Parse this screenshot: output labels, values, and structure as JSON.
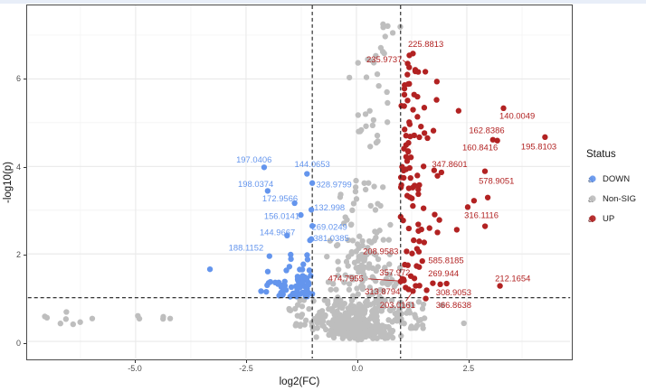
{
  "window": {
    "top_strip_color": "#E8EEF8"
  },
  "chart_data": {
    "type": "scatter",
    "subtype": "volcano-plot",
    "title": "",
    "xlabel": "log2(FC)",
    "ylabel": "-log10(p)",
    "xlim": [
      -7.44,
      4.84
    ],
    "ylim": [
      -0.39,
      7.68
    ],
    "x_tick_values": [
      -5.0,
      -2.5,
      0.0,
      2.5
    ],
    "x_tick_labels": [
      "-5.0",
      "-2.5",
      "0.0",
      "2.5"
    ],
    "y_tick_values": [
      0,
      2,
      4,
      6
    ],
    "y_tick_labels": [
      "0",
      "2",
      "4",
      "6"
    ],
    "x_minor_ticks": [
      -6.25,
      -3.75,
      -1.25,
      1.25,
      3.75
    ],
    "y_minor_ticks": [
      1,
      3,
      5,
      7
    ],
    "grid": {
      "on": true,
      "major_color": "#E9E9E9",
      "minor_color": "#F4F4F4"
    },
    "panel_border_color": "#4a4a4a",
    "thresholds": {
      "vlines": [
        -1,
        1
      ],
      "hline": 1,
      "line_style": "dashed",
      "color": "#1a1a1a"
    },
    "point_radius": 3.2,
    "seed": 42,
    "groups": {
      "DOWN": "#6495ED",
      "Non-SIG": "#BEBEBE",
      "UP": "#B22222"
    },
    "legend": {
      "title": "Status",
      "position": "right",
      "key_letter": "a",
      "entries": [
        {
          "label": "DOWN",
          "color": "#6495ED"
        },
        {
          "label": "Non-SIG",
          "color": "#BEBEBE"
        },
        {
          "label": "UP",
          "color": "#B22222"
        }
      ]
    },
    "labeled_points": [
      {
        "label": "197.0406",
        "group": "DOWN",
        "x": -2.09,
        "y": 3.98,
        "lx": -2.32,
        "ly": 4.16
      },
      {
        "label": "144.0653",
        "group": "DOWN",
        "x": -1.12,
        "y": 3.83,
        "lx": -1.0,
        "ly": 4.06
      },
      {
        "label": "198.0374",
        "group": "DOWN",
        "x": -2.01,
        "y": 3.44,
        "lx": -2.28,
        "ly": 3.6
      },
      {
        "label": "328.9799",
        "group": "DOWN",
        "x": -1.0,
        "y": 3.62,
        "lx": -0.51,
        "ly": 3.59
      },
      {
        "label": "172.9566",
        "group": "DOWN",
        "x": -1.4,
        "y": 3.16,
        "lx": -1.73,
        "ly": 3.27
      },
      {
        "label": "132.998",
        "group": "DOWN",
        "x": -1.02,
        "y": 3.01,
        "lx": -0.61,
        "ly": 3.07
      },
      {
        "label": "156.0141",
        "group": "DOWN",
        "x": -1.26,
        "y": 2.89,
        "lx": -1.69,
        "ly": 2.87
      },
      {
        "label": "269.0249",
        "group": "DOWN",
        "x": -1.0,
        "y": 2.64,
        "lx": -0.61,
        "ly": 2.62
      },
      {
        "label": "144.9667",
        "group": "DOWN",
        "x": -1.57,
        "y": 2.42,
        "lx": -1.79,
        "ly": 2.5
      },
      {
        "label": "381.0385",
        "group": "DOWN",
        "x": -1.02,
        "y": 2.34,
        "lx": -0.57,
        "ly": 2.36
      },
      {
        "label": "188.1152",
        "group": "DOWN",
        "x": -1.97,
        "y": 1.95,
        "lx": -2.5,
        "ly": 2.15
      },
      {
        "label": "225.8813",
        "group": "UP",
        "x": 1.28,
        "y": 6.58,
        "lx": 1.57,
        "ly": 6.8
      },
      {
        "label": "235.9737",
        "group": "UP",
        "x": 1.16,
        "y": 6.35,
        "lx": 0.63,
        "ly": 6.45,
        "leader": [
          1.05,
          6.43,
          1.13,
          6.37
        ]
      },
      {
        "label": "140.0049",
        "group": "UP",
        "x": 3.33,
        "y": 5.33,
        "lx": 3.64,
        "ly": 5.16
      },
      {
        "label": "162.8386",
        "group": "UP",
        "x": 3.09,
        "y": 4.61,
        "lx": 2.95,
        "ly": 4.83
      },
      {
        "label": "160.8416",
        "group": "UP",
        "x": 3.19,
        "y": 4.59,
        "lx": 2.8,
        "ly": 4.44
      },
      {
        "label": "195.8103",
        "group": "UP",
        "x": 4.27,
        "y": 4.67,
        "lx": 4.13,
        "ly": 4.46
      },
      {
        "label": "347.8601",
        "group": "UP",
        "x": 1.52,
        "y": 4.0,
        "lx": 2.11,
        "ly": 4.06
      },
      {
        "label": "578.9051",
        "group": "UP",
        "x": 2.91,
        "y": 3.89,
        "lx": 3.17,
        "ly": 3.68
      },
      {
        "label": "316.1116",
        "group": "UP",
        "x": 2.52,
        "y": 3.07,
        "lx": 2.83,
        "ly": 2.89
      },
      {
        "label": "208.9583",
        "group": "UP",
        "x": 1.26,
        "y": 2.01,
        "lx": 0.55,
        "ly": 2.07
      },
      {
        "label": "585.8185",
        "group": "UP",
        "x": 1.42,
        "y": 1.7,
        "lx": 2.03,
        "ly": 1.86
      },
      {
        "label": "357.972",
        "group": "UP",
        "x": 1.04,
        "y": 1.43,
        "lx": 0.87,
        "ly": 1.58,
        "leader": [
          0.95,
          1.52,
          1.02,
          1.45
        ]
      },
      {
        "label": "474.7955",
        "group": "UP",
        "x": 1.0,
        "y": 1.37,
        "lx": -0.24,
        "ly": 1.45,
        "leader": [
          0.27,
          1.43,
          0.98,
          1.38
        ]
      },
      {
        "label": "269.944",
        "group": "UP",
        "x": 1.73,
        "y": 1.33,
        "lx": 1.97,
        "ly": 1.56
      },
      {
        "label": "313.8794",
        "group": "UP",
        "x": 1.18,
        "y": 1.19,
        "lx": 0.59,
        "ly": 1.15
      },
      {
        "label": "308.9053",
        "group": "UP",
        "x": 1.59,
        "y": 1.17,
        "lx": 2.2,
        "ly": 1.13
      },
      {
        "label": "203.0161",
        "group": "UP",
        "x": 1.28,
        "y": 1.15,
        "lx": 0.93,
        "ly": 0.84,
        "leader": [
          1.12,
          0.92,
          1.26,
          1.12
        ]
      },
      {
        "label": "366.8638",
        "group": "UP",
        "x": 1.57,
        "y": 0.98,
        "lx": 2.2,
        "ly": 0.84
      },
      {
        "label": "212.1654",
        "group": "UP",
        "x": 3.25,
        "y": 1.27,
        "lx": 3.54,
        "ly": 1.45
      }
    ],
    "point_clusters": [
      {
        "name": "grey-bottom-core",
        "group": "Non-SIG",
        "n": 260,
        "x": {
          "type": "normal",
          "mu": 0.0,
          "sd": 0.42,
          "min": -1.05,
          "max": 1.05
        },
        "y": {
          "type": "halfnormal",
          "base": 0.07,
          "sd": 0.4,
          "sign": 1,
          "min": 0.04,
          "max": 1.35
        }
      },
      {
        "name": "grey-center-spike",
        "group": "Non-SIG",
        "n": 45,
        "x": {
          "type": "normal",
          "mu": 0.0,
          "sd": 0.07,
          "min": -0.2,
          "max": 0.2
        },
        "y": {
          "type": "uniform",
          "a": 0.02,
          "b": 0.8
        }
      },
      {
        "name": "grey-mid-column",
        "group": "Non-SIG",
        "n": 130,
        "x": {
          "type": "normal",
          "mu": 0.15,
          "sd": 0.38,
          "min": -0.95,
          "max": 1.02
        },
        "y": {
          "type": "halfnormal",
          "base": 1.0,
          "sd": 1.15,
          "sign": 1,
          "min": 1.0,
          "max": 4.6
        }
      },
      {
        "name": "grey-high-column",
        "group": "Non-SIG",
        "n": 34,
        "x": {
          "type": "normal",
          "mu": 0.45,
          "sd": 0.28,
          "min": -0.35,
          "max": 1.0
        },
        "y": {
          "type": "uniform",
          "a": 4.4,
          "b": 7.35
        }
      },
      {
        "name": "grey-wing-left",
        "group": "Non-SIG",
        "n": 46,
        "x": {
          "type": "uniform",
          "a": -1.55,
          "b": -0.35
        },
        "y": {
          "type": "uniform",
          "a": 0.3,
          "b": 0.95
        }
      },
      {
        "name": "grey-wing-right",
        "group": "Non-SIG",
        "n": 46,
        "x": {
          "type": "uniform",
          "a": 0.35,
          "b": 1.55
        },
        "y": {
          "type": "uniform",
          "a": 0.3,
          "b": 0.95
        }
      },
      {
        "name": "grey-far-left",
        "group": "Non-SIG",
        "n": 13,
        "x": {
          "type": "uniform",
          "a": -7.2,
          "b": -3.9
        },
        "y": {
          "type": "uniform",
          "a": 0.38,
          "b": 0.68
        }
      },
      {
        "name": "grey-right-sparse",
        "group": "Non-SIG",
        "n": 7,
        "x": {
          "type": "uniform",
          "a": 1.2,
          "b": 3.15
        },
        "y": {
          "type": "uniform",
          "a": 0.35,
          "b": 0.9
        }
      },
      {
        "name": "blue-main",
        "group": "DOWN",
        "n": 72,
        "x": {
          "type": "halfnormal",
          "base": -1.0,
          "sd": 0.5,
          "sign": -1,
          "min": -2.75,
          "max": -1.0
        },
        "y": {
          "type": "halfnormal",
          "base": 1.02,
          "sd": 0.45,
          "sign": 1,
          "min": 1.02,
          "max": 2.4
        }
      },
      {
        "name": "blue-lone",
        "group": "DOWN",
        "n": 1,
        "x": {
          "type": "uniform",
          "a": -3.32,
          "b": -3.3
        },
        "y": {
          "type": "uniform",
          "a": 1.64,
          "b": 1.68
        }
      },
      {
        "name": "red-high",
        "group": "UP",
        "n": 66,
        "x": {
          "type": "halfnormal",
          "base": 1.0,
          "sd": 0.38,
          "sign": 1,
          "min": 1.0,
          "max": 2.6
        },
        "y": {
          "type": "uniform",
          "a": 2.9,
          "b": 6.55
        }
      },
      {
        "name": "red-mid",
        "group": "UP",
        "n": 30,
        "x": {
          "type": "halfnormal",
          "base": 1.0,
          "sd": 0.5,
          "sign": 1,
          "min": 1.0,
          "max": 2.9
        },
        "y": {
          "type": "uniform",
          "a": 1.15,
          "b": 2.9
        }
      },
      {
        "name": "red-right-sparse",
        "group": "UP",
        "n": 3,
        "x": {
          "type": "uniform",
          "a": 2.4,
          "b": 3.2
        },
        "y": {
          "type": "uniform",
          "a": 2.2,
          "b": 4.2
        }
      }
    ]
  }
}
